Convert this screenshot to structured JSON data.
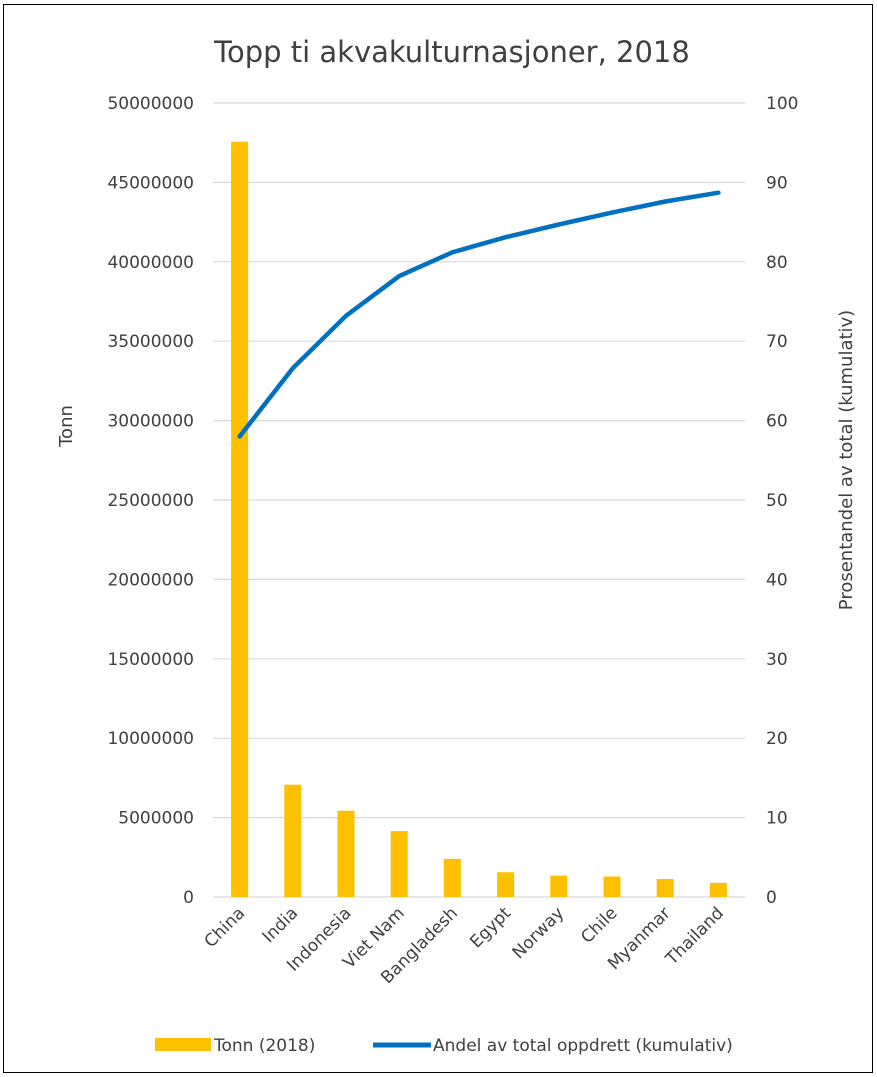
{
  "chart_data": {
    "type": "bar",
    "title": "Topp ti akvakulturnasjoner, 2018",
    "categories": [
      "China",
      "India",
      "Indonesia",
      "Viet Nam",
      "Bangladesh",
      "Egypt",
      "Norway",
      "Chile",
      "Myanmar",
      "Thailand"
    ],
    "series": [
      {
        "name": "Tonn (2018)",
        "type": "bar",
        "axis": "left",
        "color": "#FFC000",
        "values": [
          47560000,
          7070000,
          5430000,
          4150000,
          2400000,
          1560000,
          1350000,
          1290000,
          1130000,
          890000
        ]
      },
      {
        "name": "Andel av total oppdrett (kumulativ)",
        "type": "line",
        "axis": "right",
        "color": "#0070C0",
        "values": [
          58.0,
          66.6,
          73.2,
          78.2,
          81.2,
          83.1,
          84.7,
          86.2,
          87.6,
          88.7
        ]
      }
    ],
    "ylabel": "Tonn",
    "y2label": "Prosentandel av total (kumulativ)",
    "ylim": [
      0,
      50000000
    ],
    "y2lim": [
      0,
      100
    ],
    "yticks": [
      "0",
      "5000000",
      "10000000",
      "15000000",
      "20000000",
      "25000000",
      "30000000",
      "35000000",
      "40000000",
      "45000000",
      "50000000"
    ],
    "y2ticks": [
      "0",
      "10",
      "20",
      "30",
      "40",
      "50",
      "60",
      "70",
      "80",
      "90",
      "100"
    ],
    "grid": true,
    "legend": "bottom"
  }
}
